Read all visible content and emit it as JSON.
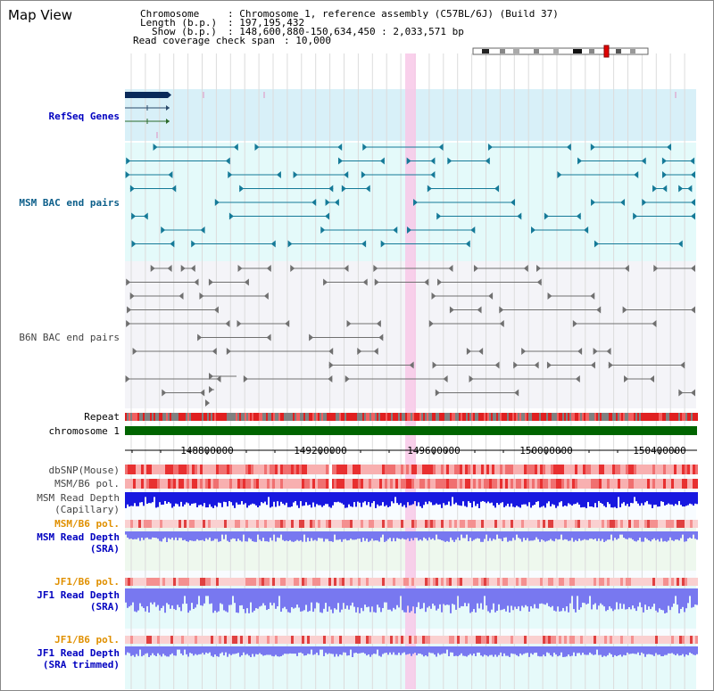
{
  "title": "Map View",
  "info": {
    "chromosome_key": "Chromosome",
    "chromosome_val": ": Chromosome 1, reference assembly (C57BL/6J) (Build 37)",
    "length_key": "Length (b.p.)",
    "length_val": ": 197,195,432",
    "show_key": "Show (b.p.)",
    "show_val": ": 148,600,880-150,634,450 : 2,033,571 bp",
    "coverage_key": "Read coverage check span",
    "coverage_val": ": 10,000"
  },
  "tracks": {
    "refseq": "RefSeq Genes",
    "msm_bac": "MSM BAC end pairs",
    "b6n_bac": "B6N BAC end pairs",
    "repeat": "Repeat",
    "chromosome": "chromosome 1",
    "dbsnp": "dbSNP(Mouse)",
    "msm_b6_pol1": "MSM/B6 pol.",
    "msm_depth_cap_1": "MSM Read Depth",
    "msm_depth_cap_2": "(Capillary)",
    "msm_b6_pol2": "MSM/B6 pol.",
    "msm_depth_sra_1": "MSM Read Depth",
    "msm_depth_sra_2": "(SRA)",
    "jf1_b6_pol1": "JF1/B6 pol.",
    "jf1_depth_1": "JF1 Read Depth",
    "jf1_depth_2": "(SRA)",
    "jf1_b6_pol2": "JF1/B6 pol.",
    "jf1_trim_1": "JF1 Read Depth",
    "jf1_trim_2": "(SRA trimmed)"
  },
  "axis": {
    "ticks": [
      "148800000",
      "149200000",
      "149600000",
      "150000000",
      "150400000"
    ]
  },
  "colors": {
    "refseq_bg": "#d8f0f8",
    "msm_bg": "#e4fafa",
    "b6n_bg": "#f4f4f8",
    "chromosome": "#006400",
    "highlight": "#f8c8e8",
    "depth_capillary": "#1818e0",
    "depth_sra": "#7878f0"
  }
}
